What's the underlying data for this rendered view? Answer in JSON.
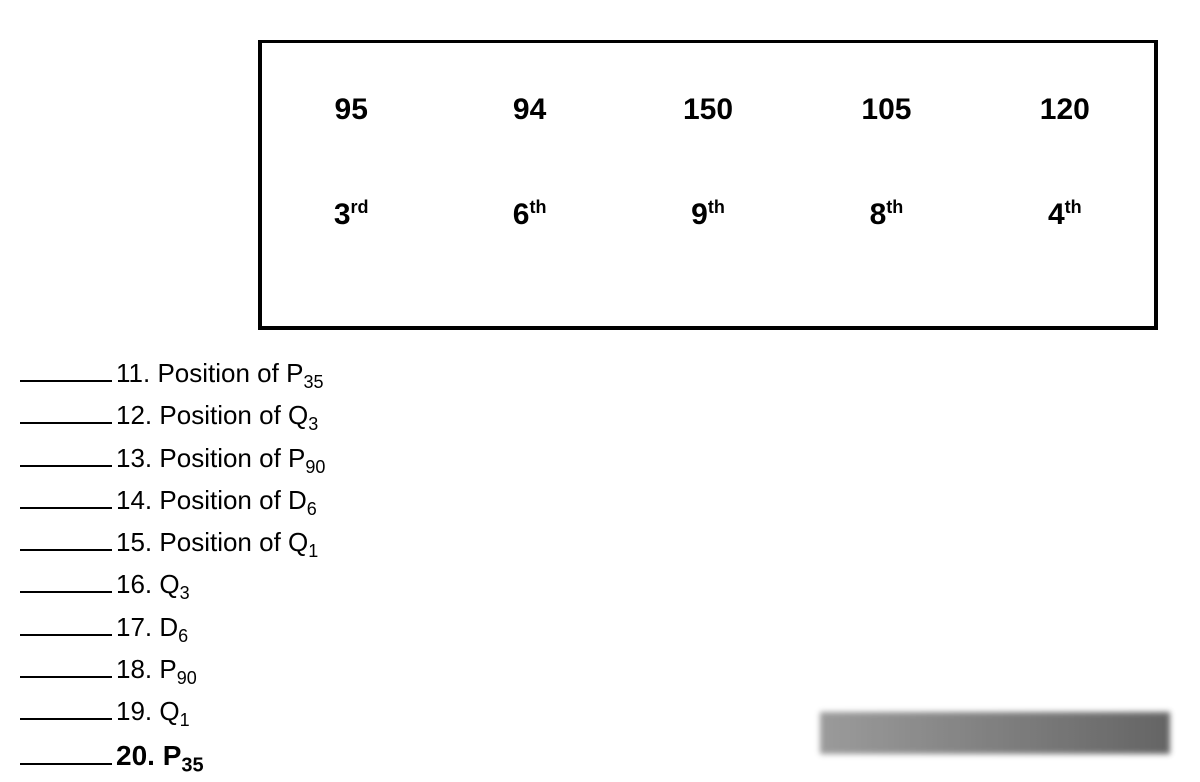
{
  "box": {
    "values": [
      "95",
      "94",
      "150",
      "105",
      "120"
    ],
    "ordinals": [
      {
        "num": "3",
        "suf": "rd"
      },
      {
        "num": "6",
        "suf": "th"
      },
      {
        "num": "9",
        "suf": "th"
      },
      {
        "num": "8",
        "suf": "th"
      },
      {
        "num": "4",
        "suf": "th"
      }
    ]
  },
  "questions": [
    {
      "n": "11.",
      "label": "Position of P",
      "sub": "35"
    },
    {
      "n": "12.",
      "label": "Position of Q",
      "sub": "3"
    },
    {
      "n": "13.",
      "label": "Position of P",
      "sub": "90"
    },
    {
      "n": "14.",
      "label": "Position of D",
      "sub": "6"
    },
    {
      "n": "15.",
      "label": "Position of Q",
      "sub": "1"
    },
    {
      "n": "16.",
      "label": "Q",
      "sub": "3"
    },
    {
      "n": "17.",
      "label": "D",
      "sub": "6"
    },
    {
      "n": "18.",
      "label": "P",
      "sub": "90"
    },
    {
      "n": "19.",
      "label": "Q",
      "sub": "1"
    }
  ],
  "handwritten": {
    "n": "20.",
    "label": "P",
    "sub": "35"
  },
  "style": {
    "background_color": "#ffffff",
    "text_color": "#000000",
    "border_color": "#000000",
    "value_fontsize": 30,
    "ordinal_fontsize": 30,
    "question_fontsize": 26,
    "font_family": "Arial"
  }
}
